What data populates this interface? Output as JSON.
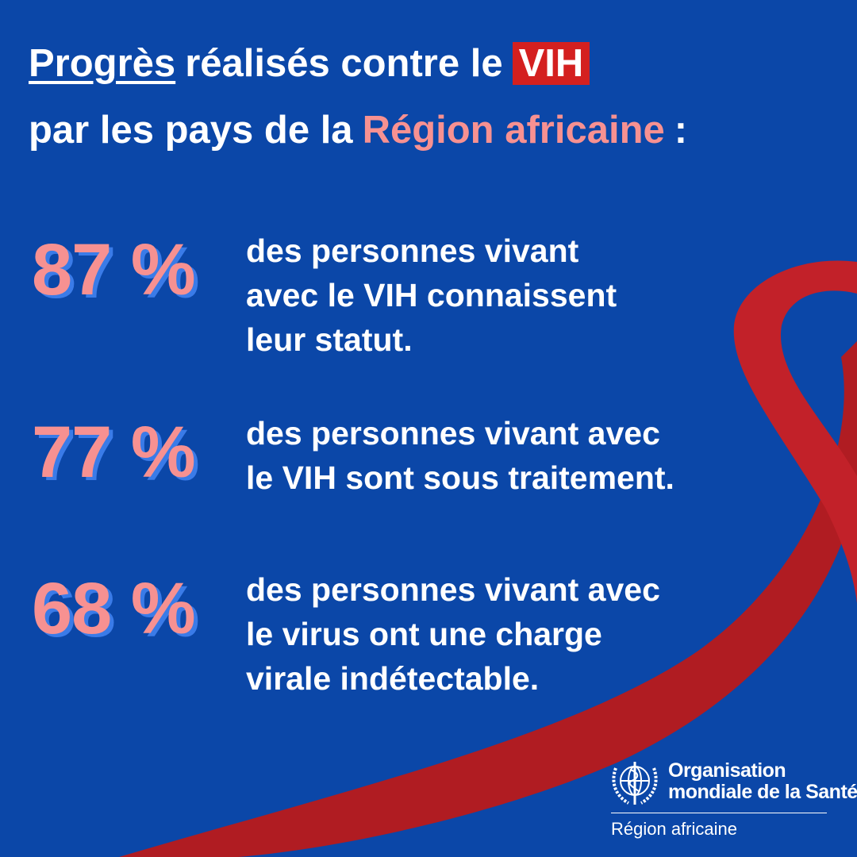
{
  "header": {
    "title_line1": {
      "underlined": "Progrès",
      "plain": "réalisés contre le",
      "boxed": "VIH"
    },
    "title_line2": {
      "plain": "par les pays de la",
      "highlight": "Région africaine",
      "end": ":"
    }
  },
  "stats": [
    {
      "figure": "87 %",
      "lines": [
        "des personnes vivant",
        "avec le VIH connaissent",
        "leur statut."
      ]
    },
    {
      "figure": "77 %",
      "lines": [
        "des personnes vivant avec",
        "le VIH sont sous traitement."
      ]
    },
    {
      "figure": "68 %",
      "lines": [
        "des personnes vivant avec",
        "le virus ont une charge",
        "virale indétectable."
      ]
    }
  ],
  "logo": {
    "name_line1": "Organisation",
    "name_line2": "mondiale de la Santé",
    "region": "Région africaine"
  }
}
